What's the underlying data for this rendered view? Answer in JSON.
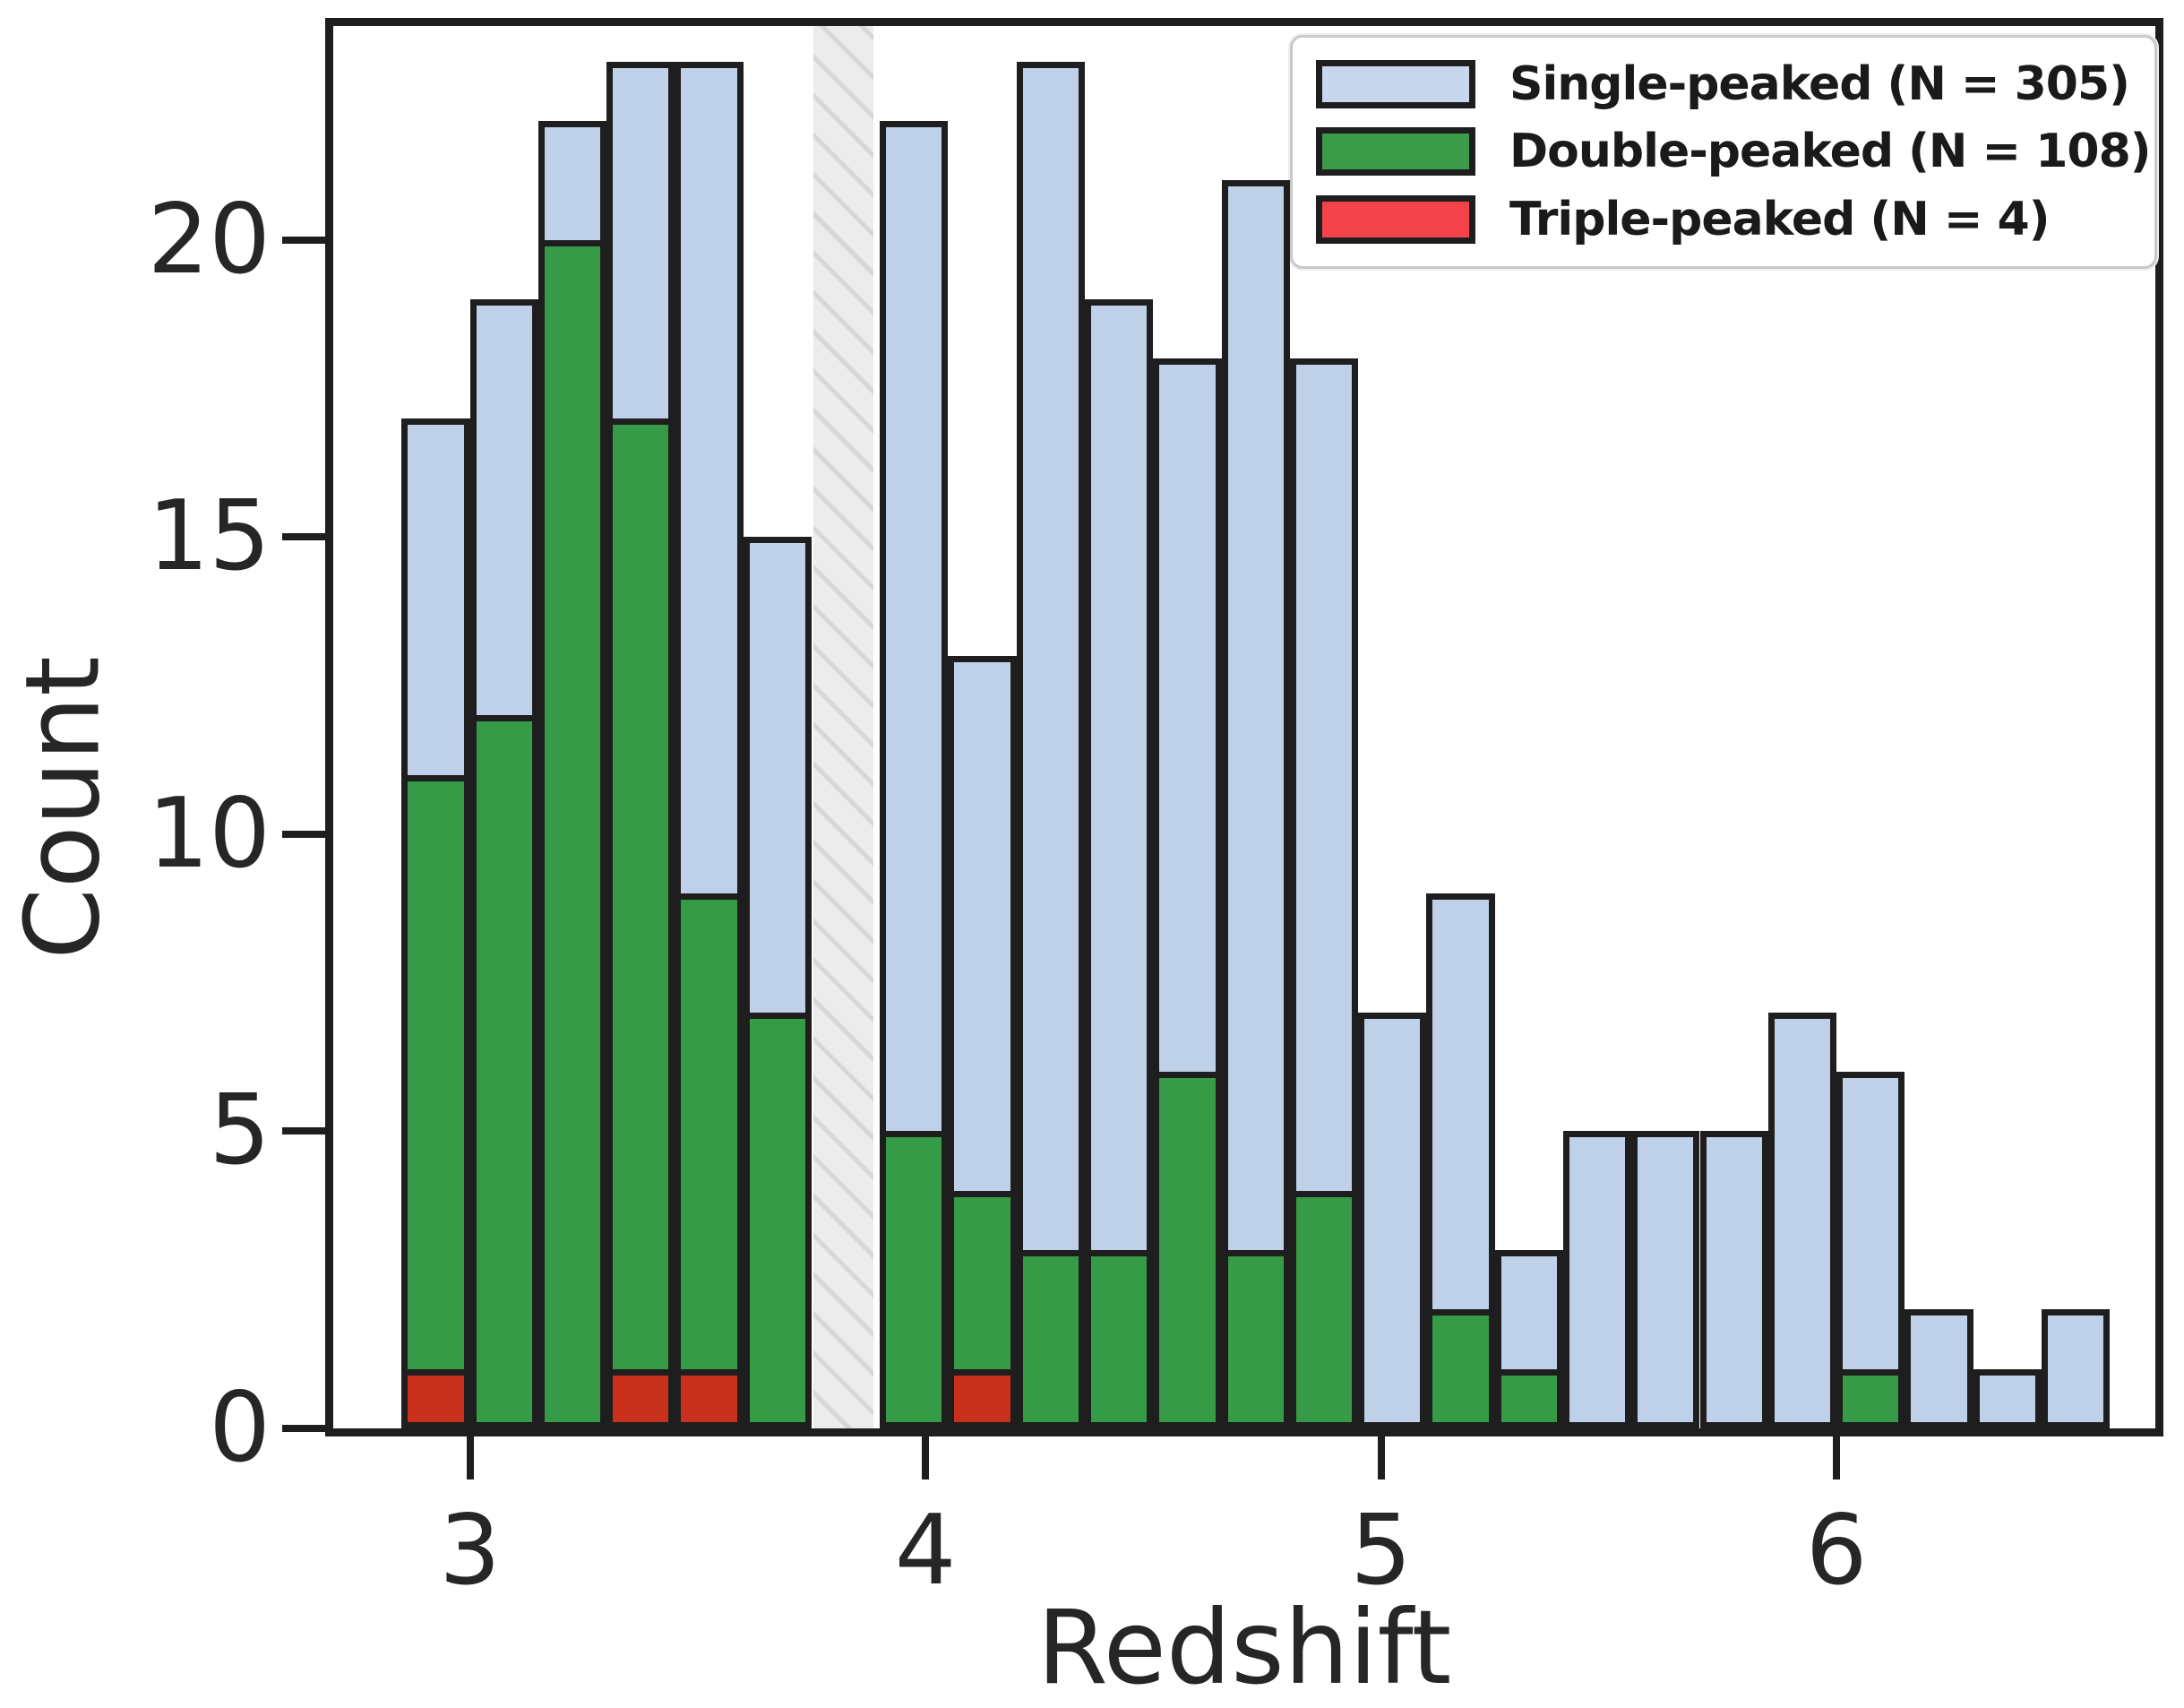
{
  "chart_data": {
    "type": "bar",
    "subtype": "overlaid-histogram",
    "title": "",
    "xlabel": "Redshift",
    "ylabel": "Count",
    "xlim": [
      2.7,
      6.7
    ],
    "ylim": [
      0,
      23.6
    ],
    "x_ticks": [
      "3",
      "4",
      "5",
      "6"
    ],
    "x_tick_values": [
      3,
      4,
      5,
      6
    ],
    "y_ticks": [
      "0",
      "5",
      "10",
      "15",
      "20"
    ],
    "y_tick_values": [
      0,
      5,
      10,
      15,
      20
    ],
    "grid": "off",
    "legend_position": "upper right",
    "bin_width": 0.15,
    "bin_left_edges": [
      2.85,
      3.0,
      3.15,
      3.3,
      3.45,
      3.6,
      3.75,
      3.9,
      4.05,
      4.2,
      4.35,
      4.5,
      4.65,
      4.8,
      4.95,
      5.1,
      5.25,
      5.4,
      5.55,
      5.7,
      5.85,
      6.0,
      6.15,
      6.3,
      6.45
    ],
    "series": [
      {
        "name": "Single-peaked (N = 305)",
        "total": 305,
        "color": "#bfd0e9",
        "legend_color": "#c9d7ee",
        "values": [
          17,
          19,
          22,
          23,
          23,
          15,
          0,
          22,
          13,
          23,
          19,
          18,
          21,
          18,
          7,
          9,
          3,
          5,
          5,
          5,
          7,
          6,
          2,
          1,
          2
        ]
      },
      {
        "name": "Double-peaked (N = 108)",
        "total": 108,
        "color": "#369b47",
        "legend_color": "#3a9b49",
        "values": [
          11,
          12,
          20,
          17,
          9,
          7,
          0,
          5,
          4,
          3,
          3,
          6,
          3,
          4,
          0,
          2,
          1,
          0,
          0,
          0,
          0,
          1,
          0,
          0,
          0
        ]
      },
      {
        "name": "Triple-peaked (N = 4)",
        "total": 4,
        "color": "#c8301c",
        "legend_color": "#f4424b",
        "values": [
          1,
          0,
          0,
          1,
          1,
          0,
          0,
          0,
          1,
          0,
          0,
          0,
          0,
          0,
          0,
          0,
          0,
          0,
          0,
          0,
          0,
          0,
          0,
          0,
          0
        ]
      }
    ],
    "shaded_band": {
      "from": 3.755,
      "to": 3.885,
      "fill": "#ececec",
      "hatch_color": "#d7d7d7",
      "hatch": "/"
    },
    "bar_edge_color": "#1e1e1e",
    "text_color": "#262626"
  }
}
